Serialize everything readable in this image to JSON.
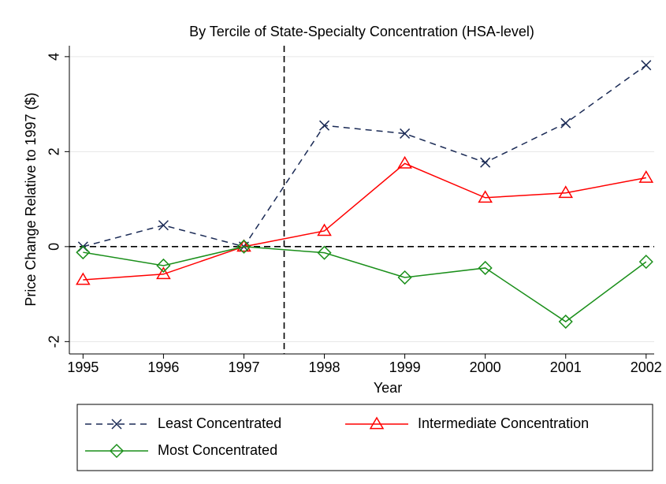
{
  "chart_data": {
    "type": "line",
    "title": "By Tercile of State-Specialty Concentration (HSA-level)",
    "x_label": "Year",
    "y_label": "Price Change Relative to 1997 ($)",
    "x": [
      1995,
      1996,
      1997,
      1998,
      1999,
      2000,
      2001,
      2002
    ],
    "xlim": [
      1994.83,
      2002.1
    ],
    "xticks": [
      1995,
      1996,
      1997,
      1998,
      1999,
      2000,
      2001,
      2002
    ],
    "ylim": [
      -2.26,
      4.23
    ],
    "yticks": [
      -2,
      0,
      2,
      4
    ],
    "grid": true,
    "vline": 1997.5,
    "hline": 0,
    "series": [
      {
        "name": "Least Concentrated",
        "color": "#1a2a55",
        "dash": true,
        "marker": "x",
        "values": [
          0,
          0.45,
          0,
          2.55,
          2.38,
          1.77,
          2.6,
          3.82
        ]
      },
      {
        "name": "Intermediate Concentration",
        "color": "#ff0000",
        "dash": false,
        "marker": "triangle",
        "values": [
          -0.7,
          -0.58,
          0,
          0.33,
          1.75,
          1.03,
          1.13,
          1.45
        ]
      },
      {
        "name": "Most Concentrated",
        "color": "#1a8f1a",
        "dash": false,
        "marker": "diamond",
        "values": [
          -0.12,
          -0.4,
          0,
          -0.13,
          -0.65,
          -0.45,
          -1.58,
          -0.32
        ]
      }
    ]
  }
}
